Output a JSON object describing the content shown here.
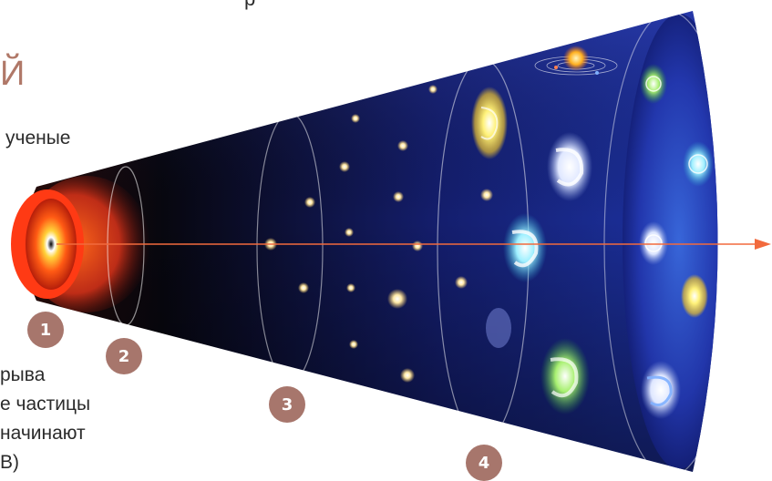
{
  "fragments": {
    "top": "р",
    "heading": "Й",
    "line_uchenye": "ученые",
    "line_ryva": "рыва",
    "line_chasticy": "е частицы",
    "line_nachinayut": "начинают",
    "line_v": "В)"
  },
  "stages": [
    {
      "number": "1"
    },
    {
      "number": "2"
    },
    {
      "number": "3"
    },
    {
      "number": "4"
    }
  ],
  "colors": {
    "badge": "#a7766c",
    "arrow": "#f26a3d",
    "cone_dark": "#0a0d2b",
    "cone_blue": "#1b2a8c"
  }
}
